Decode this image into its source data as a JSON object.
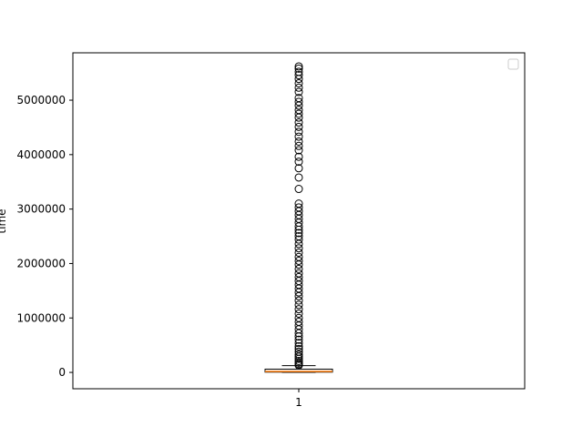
{
  "chart_data": {
    "type": "box",
    "title": "",
    "xlabel": "",
    "ylabel": "time",
    "ylim": [
      -300000,
      5870000
    ],
    "xticks": [
      "1"
    ],
    "yticks": [
      0,
      1000000,
      2000000,
      3000000,
      4000000,
      5000000
    ],
    "ytick_labels": [
      "0",
      "1000000",
      "2000000",
      "3000000",
      "4000000",
      "5000000"
    ],
    "legend": {
      "visible": true,
      "placement": "top-right",
      "entries": []
    },
    "grid": false,
    "box": {
      "category": "1",
      "whisker_low": 0,
      "q1": 5000,
      "median": 18000,
      "q3": 60000,
      "whisker_high": 125000,
      "box_color": "#ffffff",
      "median_color": "#ff7f0e"
    },
    "outliers": [
      130000,
      150000,
      180000,
      210000,
      250000,
      290000,
      330000,
      380000,
      430000,
      480000,
      540000,
      600000,
      660000,
      720000,
      790000,
      860000,
      930000,
      1000000,
      1080000,
      1160000,
      1240000,
      1320000,
      1400000,
      1470000,
      1540000,
      1610000,
      1680000,
      1750000,
      1820000,
      1900000,
      1980000,
      2050000,
      2120000,
      2200000,
      2280000,
      2360000,
      2440000,
      2500000,
      2560000,
      2620000,
      2680000,
      2750000,
      2820000,
      2890000,
      2960000,
      3030000,
      3100000,
      3370000,
      3580000,
      3750000,
      3870000,
      3960000,
      4080000,
      4160000,
      4240000,
      4330000,
      4420000,
      4510000,
      4590000,
      4680000,
      4750000,
      4820000,
      4900000,
      4970000,
      5040000,
      5150000,
      5230000,
      5310000,
      5390000,
      5460000,
      5520000,
      5580000,
      5620000
    ]
  }
}
